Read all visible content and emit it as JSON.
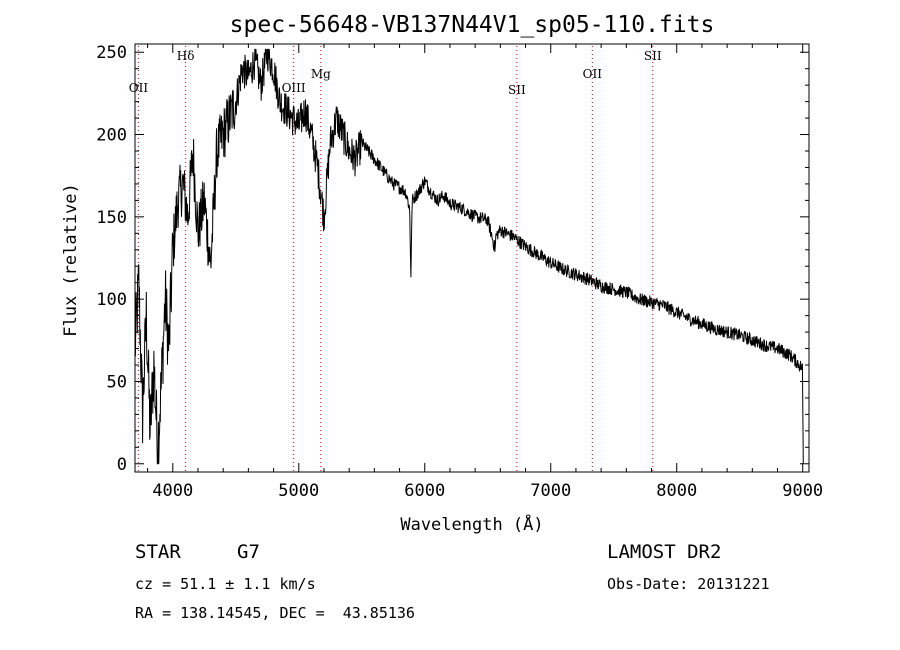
{
  "chart_data": {
    "type": "line",
    "title": "spec-56648-VB137N44V1_sp05-110.fits",
    "xlabel": "Wavelength (Å)",
    "ylabel": "Flux (relative)",
    "xlim": [
      3700,
      9050
    ],
    "ylim": [
      -5,
      255
    ],
    "xticks": [
      4000,
      5000,
      6000,
      7000,
      8000,
      9000
    ],
    "yticks": [
      0,
      50,
      100,
      150,
      200,
      250
    ],
    "line_color": "#000000",
    "marker_line_color": "#cc0000",
    "spectrum": {
      "x": [
        3700,
        3730,
        3760,
        3790,
        3820,
        3850,
        3880,
        3910,
        3940,
        3970,
        4000,
        4040,
        4080,
        4120,
        4160,
        4200,
        4250,
        4300,
        4350,
        4400,
        4450,
        4500,
        4550,
        4600,
        4650,
        4700,
        4750,
        4800,
        4850,
        4900,
        4950,
        5000,
        5050,
        5100,
        5150,
        5200,
        5250,
        5300,
        5350,
        5400,
        5450,
        5500,
        5550,
        5600,
        5650,
        5700,
        5750,
        5800,
        5850,
        5880,
        5890,
        5900,
        5950,
        6000,
        6050,
        6100,
        6150,
        6200,
        6300,
        6400,
        6500,
        6560,
        6563,
        6600,
        6700,
        6800,
        6900,
        7000,
        7100,
        7200,
        7300,
        7400,
        7500,
        7600,
        7700,
        7800,
        7900,
        8000,
        8100,
        8200,
        8300,
        8400,
        8500,
        8600,
        8700,
        8800,
        8900,
        8950,
        9000
      ],
      "y": [
        70,
        110,
        30,
        90,
        20,
        60,
        10,
        50,
        100,
        70,
        130,
        160,
        170,
        150,
        190,
        140,
        160,
        120,
        190,
        200,
        210,
        220,
        240,
        235,
        245,
        230,
        250,
        240,
        220,
        215,
        210,
        205,
        215,
        200,
        180,
        150,
        195,
        210,
        200,
        190,
        185,
        195,
        190,
        185,
        180,
        175,
        170,
        168,
        165,
        155,
        115,
        160,
        165,
        172,
        165,
        160,
        163,
        158,
        155,
        150,
        148,
        130,
        138,
        142,
        138,
        132,
        127,
        122,
        118,
        115,
        112,
        108,
        106,
        104,
        100,
        98,
        96,
        92,
        88,
        85,
        82,
        80,
        78,
        75,
        72,
        70,
        66,
        62,
        58
      ]
    },
    "lines": [
      {
        "label": "OII",
        "x": 3727
      },
      {
        "label": "Hδ",
        "x": 4102
      },
      {
        "label": "OIII",
        "x": 4959
      },
      {
        "label": "Mg",
        "x": 5175
      },
      {
        "label": "SII",
        "x": 6731
      },
      {
        "label": "OII",
        "x": 7330
      },
      {
        "label": "SII",
        "x": 7810
      }
    ]
  },
  "info": {
    "object_class": "STAR",
    "subclass": "G7",
    "survey": "LAMOST DR2",
    "cz": "cz = 51.1 ± 1.1 km/s",
    "obs_date": "Obs-Date: 20131221",
    "coords": "RA = 138.14545, DEC =  43.85136"
  }
}
